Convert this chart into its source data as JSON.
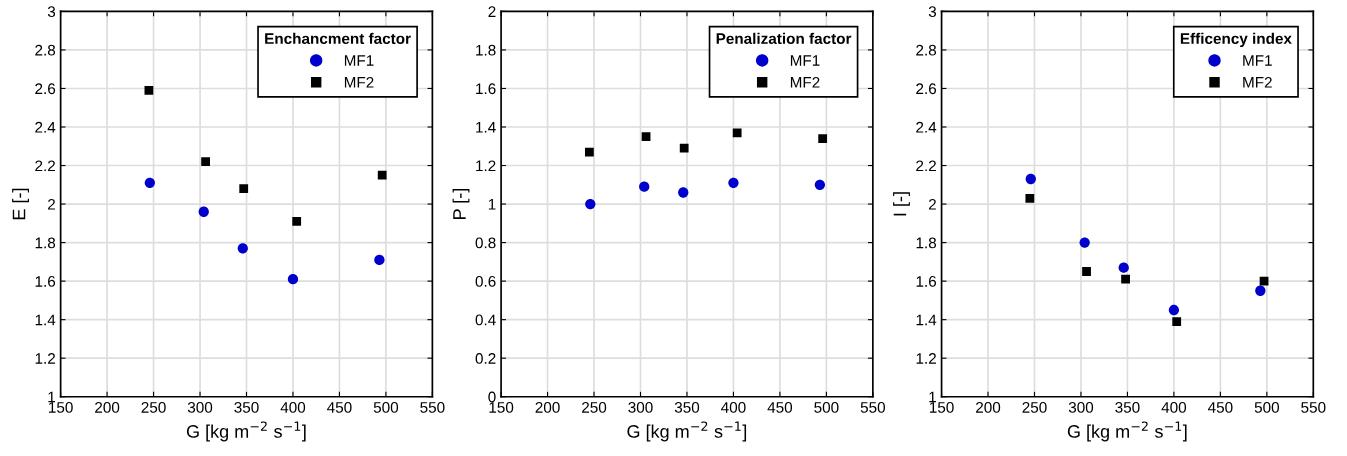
{
  "chart_data": [
    {
      "type": "scatter",
      "xlabel": "G [kg m$^{−2}$ s$^{−1}$]",
      "ylabel": "E [-]",
      "legend_title": "Enchancment factor",
      "legend": "top right",
      "grid": true,
      "xlim": [
        150,
        550
      ],
      "xticks": [
        150,
        200,
        250,
        300,
        350,
        400,
        450,
        500,
        550
      ],
      "ylim": [
        1,
        3
      ],
      "yticks": [
        1,
        1.2,
        1.4,
        1.6,
        1.8,
        2,
        2.2,
        2.4,
        2.6,
        2.8,
        3
      ],
      "series": [
        {
          "name": "MF1",
          "color": "#0000cc",
          "marker": "circle",
          "x": [
            246,
            304,
            346,
            400,
            493
          ],
          "values": [
            2.11,
            1.96,
            1.77,
            1.61,
            1.71
          ]
        },
        {
          "name": "MF2",
          "color": "#000000",
          "marker": "square",
          "x": [
            245,
            306,
            347,
            404,
            496
          ],
          "values": [
            2.59,
            2.22,
            2.08,
            1.91,
            2.15
          ]
        }
      ]
    },
    {
      "type": "scatter",
      "xlabel": "G [kg m$^{−2}$ s$^{−1}$]",
      "ylabel": "P [-]",
      "legend_title": "Penalization factor",
      "legend": "top right",
      "grid": true,
      "xlim": [
        150,
        550
      ],
      "xticks": [
        150,
        200,
        250,
        300,
        350,
        400,
        450,
        500,
        550
      ],
      "ylim": [
        0,
        2
      ],
      "yticks": [
        0,
        0.2,
        0.4,
        0.6,
        0.8,
        1,
        1.2,
        1.4,
        1.6,
        1.8,
        2
      ],
      "series": [
        {
          "name": "MF1",
          "color": "#0000cc",
          "marker": "circle",
          "x": [
            246,
            304,
            346,
            400,
            493
          ],
          "values": [
            1.0,
            1.09,
            1.06,
            1.11,
            1.1
          ]
        },
        {
          "name": "MF2",
          "color": "#000000",
          "marker": "square",
          "x": [
            245,
            306,
            347,
            404,
            496
          ],
          "values": [
            1.27,
            1.35,
            1.29,
            1.37,
            1.34
          ]
        }
      ]
    },
    {
      "type": "scatter",
      "xlabel": "G [kg m$^{−2}$ s$^{−1}$]",
      "ylabel": "I [-]",
      "legend_title": "Efficency index",
      "legend": "top right",
      "grid": true,
      "xlim": [
        150,
        550
      ],
      "xticks": [
        150,
        200,
        250,
        300,
        350,
        400,
        450,
        500,
        550
      ],
      "ylim": [
        1,
        3
      ],
      "yticks": [
        1,
        1.2,
        1.4,
        1.6,
        1.8,
        2,
        2.2,
        2.4,
        2.6,
        2.8,
        3
      ],
      "series": [
        {
          "name": "MF1",
          "color": "#0000cc",
          "marker": "circle",
          "x": [
            246,
            304,
            346,
            400,
            493
          ],
          "values": [
            2.13,
            1.8,
            1.67,
            1.45,
            1.55
          ]
        },
        {
          "name": "MF2",
          "color": "#000000",
          "marker": "square",
          "x": [
            245,
            306,
            348,
            403,
            497
          ],
          "values": [
            2.03,
            1.65,
            1.61,
            1.39,
            1.6
          ]
        }
      ]
    }
  ]
}
